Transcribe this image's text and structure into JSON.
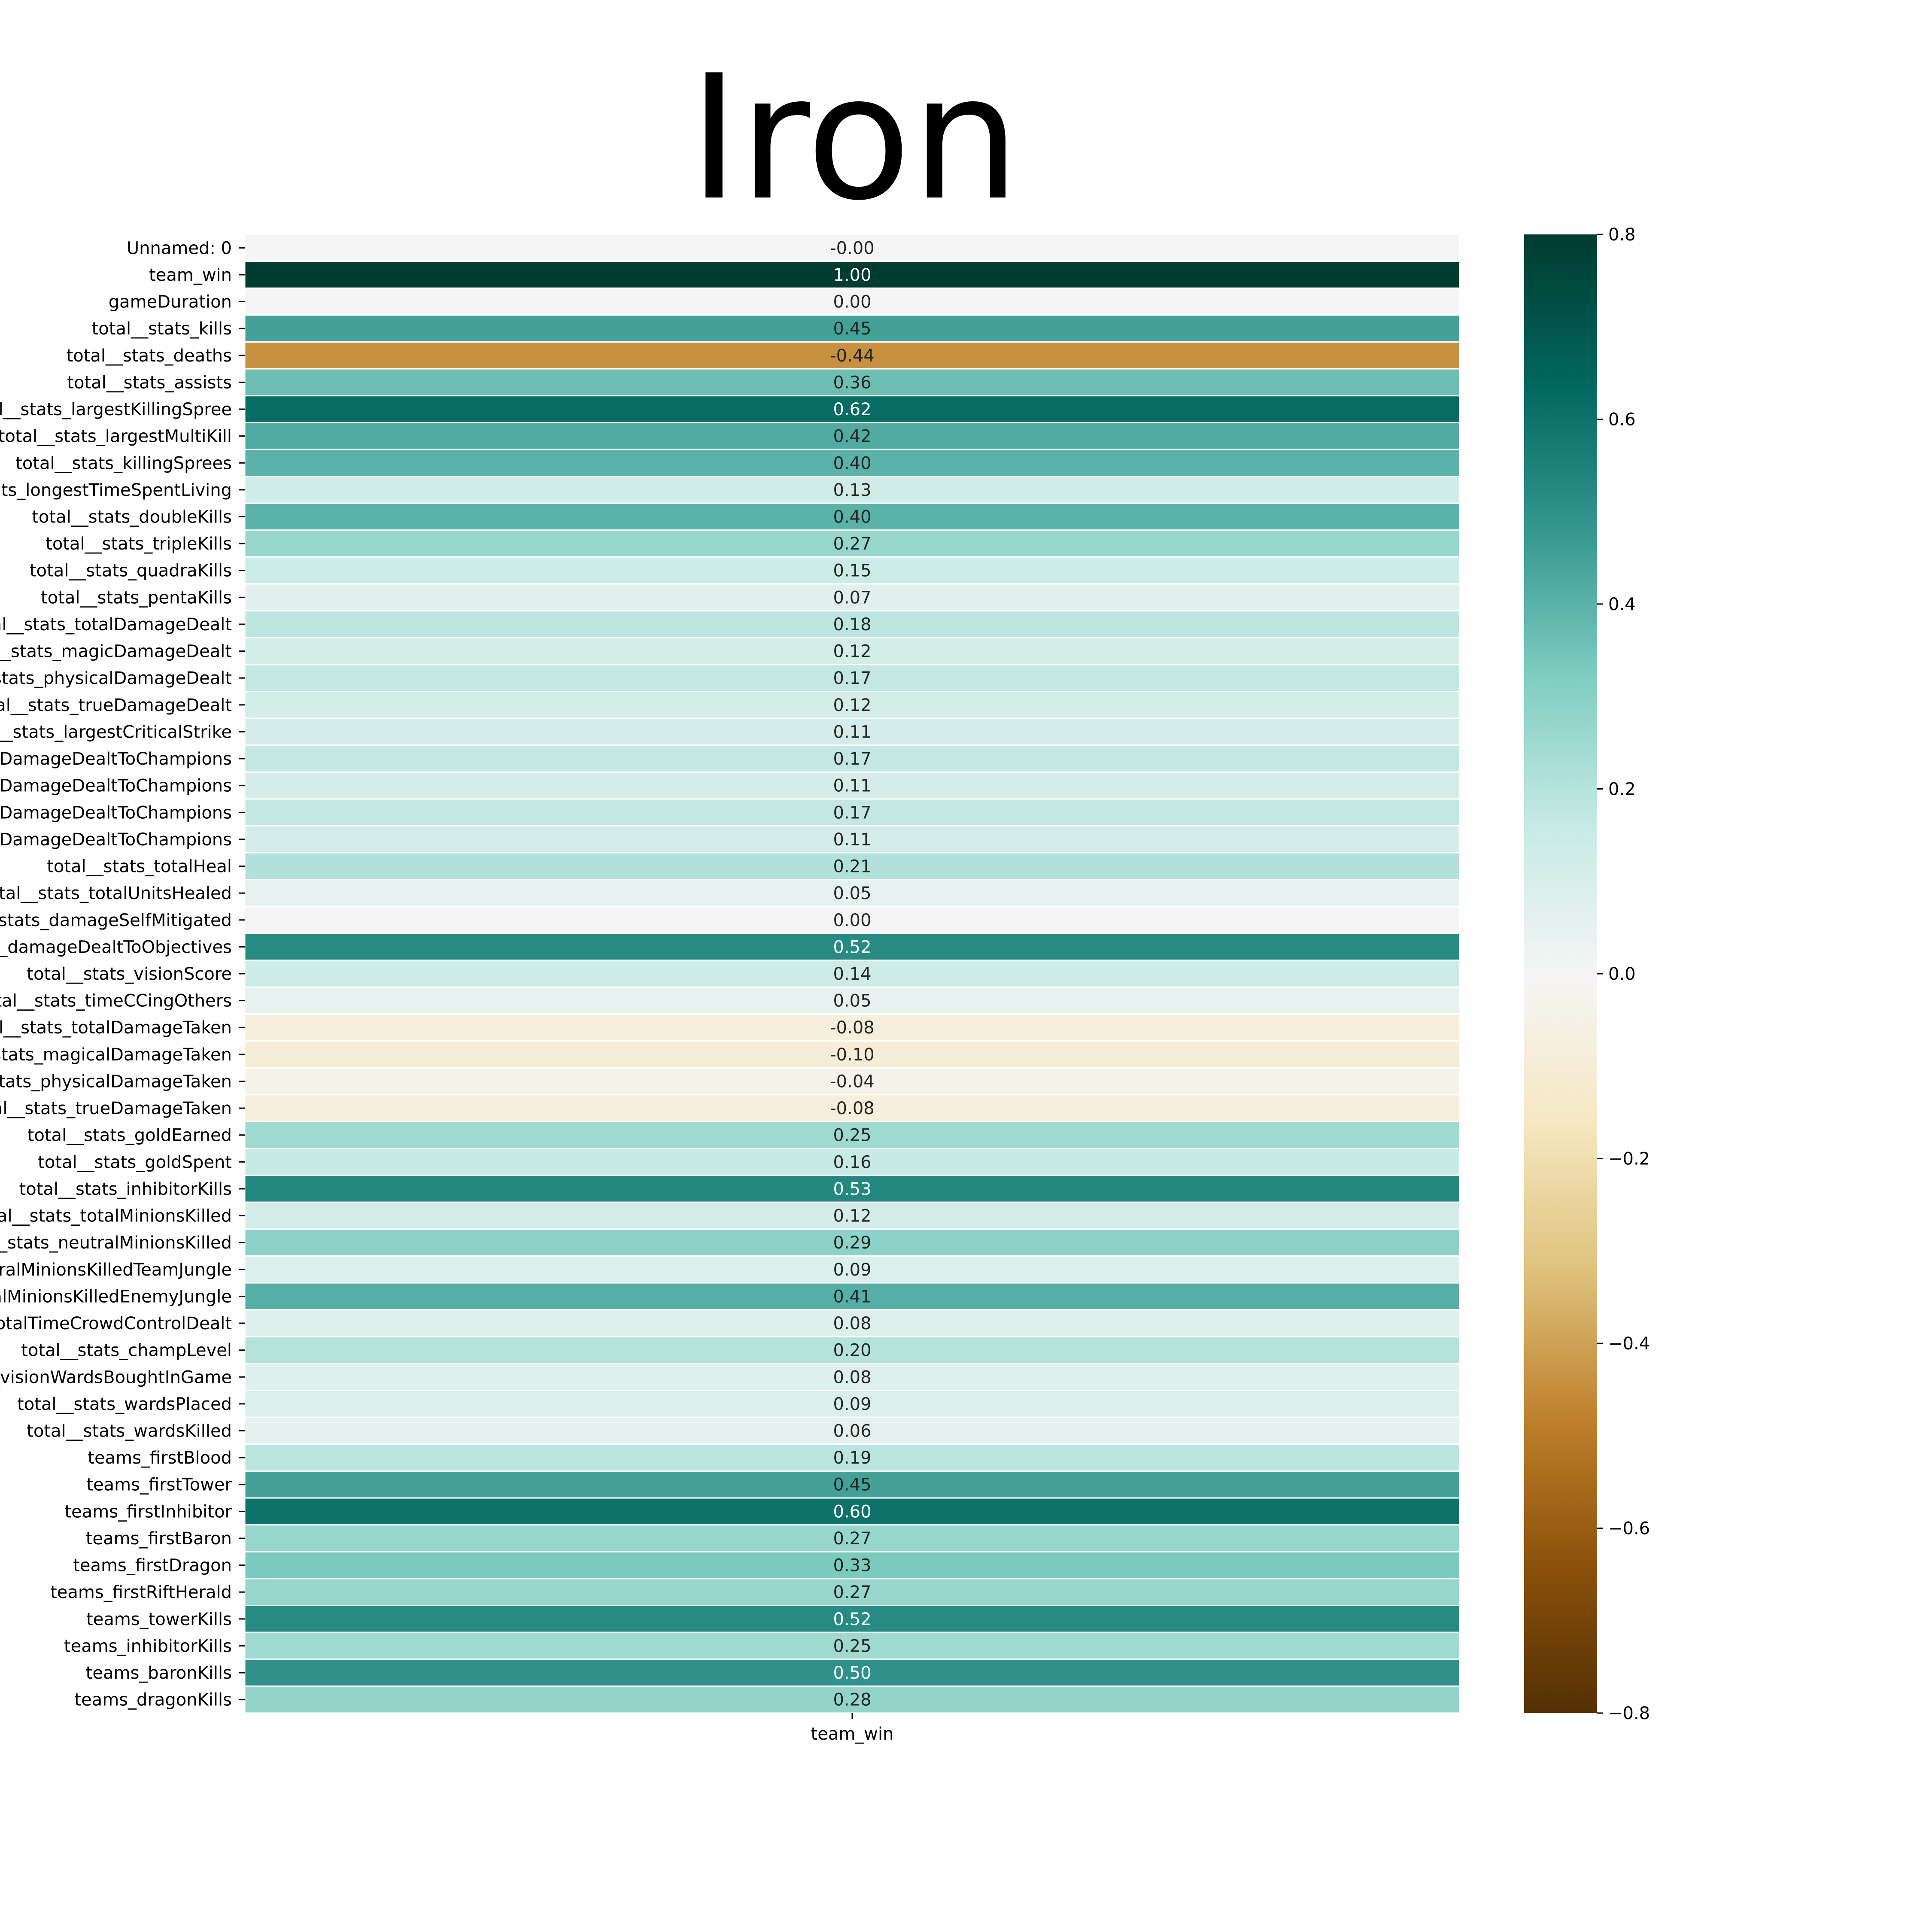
{
  "chart_data": {
    "type": "heatmap",
    "title": "Iron",
    "xlabel": "",
    "ylabel": "",
    "columns": [
      "team_win"
    ],
    "rows": [
      "Unnamed: 0",
      "team_win",
      "gameDuration",
      "total__stats_kills",
      "total__stats_deaths",
      "total__stats_assists",
      "total__stats_largestKillingSpree",
      "total__stats_largestMultiKill",
      "total__stats_killingSprees",
      "total__stats_longestTimeSpentLiving",
      "total__stats_doubleKills",
      "total__stats_tripleKills",
      "total__stats_quadraKills",
      "total__stats_pentaKills",
      "total__stats_totalDamageDealt",
      "total__stats_magicDamageDealt",
      "total__stats_physicalDamageDealt",
      "total__stats_trueDamageDealt",
      "total__stats_largestCriticalStrike",
      "total__stats_totalDamageDealtToChampions",
      "total__stats_magicDamageDealtToChampions",
      "total__stats_physicalDamageDealtToChampions",
      "total__stats_trueDamageDealtToChampions",
      "total__stats_totalHeal",
      "total__stats_totalUnitsHealed",
      "total__stats_damageSelfMitigated",
      "total__stats_damageDealtToObjectives",
      "total__stats_visionScore",
      "total__stats_timeCCingOthers",
      "total__stats_totalDamageTaken",
      "total__stats_magicalDamageTaken",
      "total__stats_physicalDamageTaken",
      "total__stats_trueDamageTaken",
      "total__stats_goldEarned",
      "total__stats_goldSpent",
      "total__stats_inhibitorKills",
      "total__stats_totalMinionsKilled",
      "total__stats_neutralMinionsKilled",
      "total__stats_neutralMinionsKilledTeamJungle",
      "total__stats_neutralMinionsKilledEnemyJungle",
      "total__stats_totalTimeCrowdControlDealt",
      "total__stats_champLevel",
      "total__stats_visionWardsBoughtInGame",
      "total__stats_wardsPlaced",
      "total__stats_wardsKilled",
      "teams_firstBlood",
      "teams_firstTower",
      "teams_firstInhibitor",
      "teams_firstBaron",
      "teams_firstDragon",
      "teams_firstRiftHerald",
      "teams_towerKills",
      "teams_inhibitorKills",
      "teams_baronKills",
      "teams_dragonKills"
    ],
    "values": [
      -0.001,
      1.0,
      0.0,
      0.45,
      -0.44,
      0.36,
      0.62,
      0.42,
      0.4,
      0.13,
      0.4,
      0.27,
      0.15,
      0.07,
      0.18,
      0.12,
      0.17,
      0.12,
      0.11,
      0.17,
      0.11,
      0.17,
      0.11,
      0.21,
      0.05,
      0.0,
      0.52,
      0.14,
      0.05,
      -0.08,
      -0.1,
      -0.04,
      -0.08,
      0.25,
      0.16,
      0.53,
      0.12,
      0.29,
      0.09,
      0.41,
      0.08,
      0.2,
      0.08,
      0.09,
      0.06,
      0.19,
      0.45,
      0.6,
      0.27,
      0.33,
      0.27,
      0.52,
      0.25,
      0.5,
      0.28
    ],
    "annotations": [
      "-0.00",
      "1.00",
      "0.00",
      "0.45",
      "-0.44",
      "0.36",
      "0.62",
      "0.42",
      "0.40",
      "0.13",
      "0.40",
      "0.27",
      "0.15",
      "0.07",
      "0.18",
      "0.12",
      "0.17",
      "0.12",
      "0.11",
      "0.17",
      "0.11",
      "0.17",
      "0.11",
      "0.21",
      "0.05",
      "0.00",
      "0.52",
      "0.14",
      "0.05",
      "-0.08",
      "-0.10",
      "-0.04",
      "-0.08",
      "0.25",
      "0.16",
      "0.53",
      "0.12",
      "0.29",
      "0.09",
      "0.41",
      "0.08",
      "0.20",
      "0.08",
      "0.09",
      "0.06",
      "0.19",
      "0.45",
      "0.60",
      "0.27",
      "0.33",
      "0.27",
      "0.52",
      "0.25",
      "0.50",
      "0.28"
    ],
    "colorbar": {
      "range": [
        -0.8,
        0.8
      ],
      "ticks": [
        0.8,
        0.6,
        0.4,
        0.2,
        0.0,
        -0.2,
        -0.4,
        -0.6,
        -0.8
      ],
      "tick_labels": [
        "0.8",
        "0.6",
        "0.4",
        "0.2",
        "0.0",
        "−0.2",
        "−0.4",
        "−0.6",
        "−0.8"
      ],
      "colormap": "BrBG"
    },
    "grid": false
  }
}
